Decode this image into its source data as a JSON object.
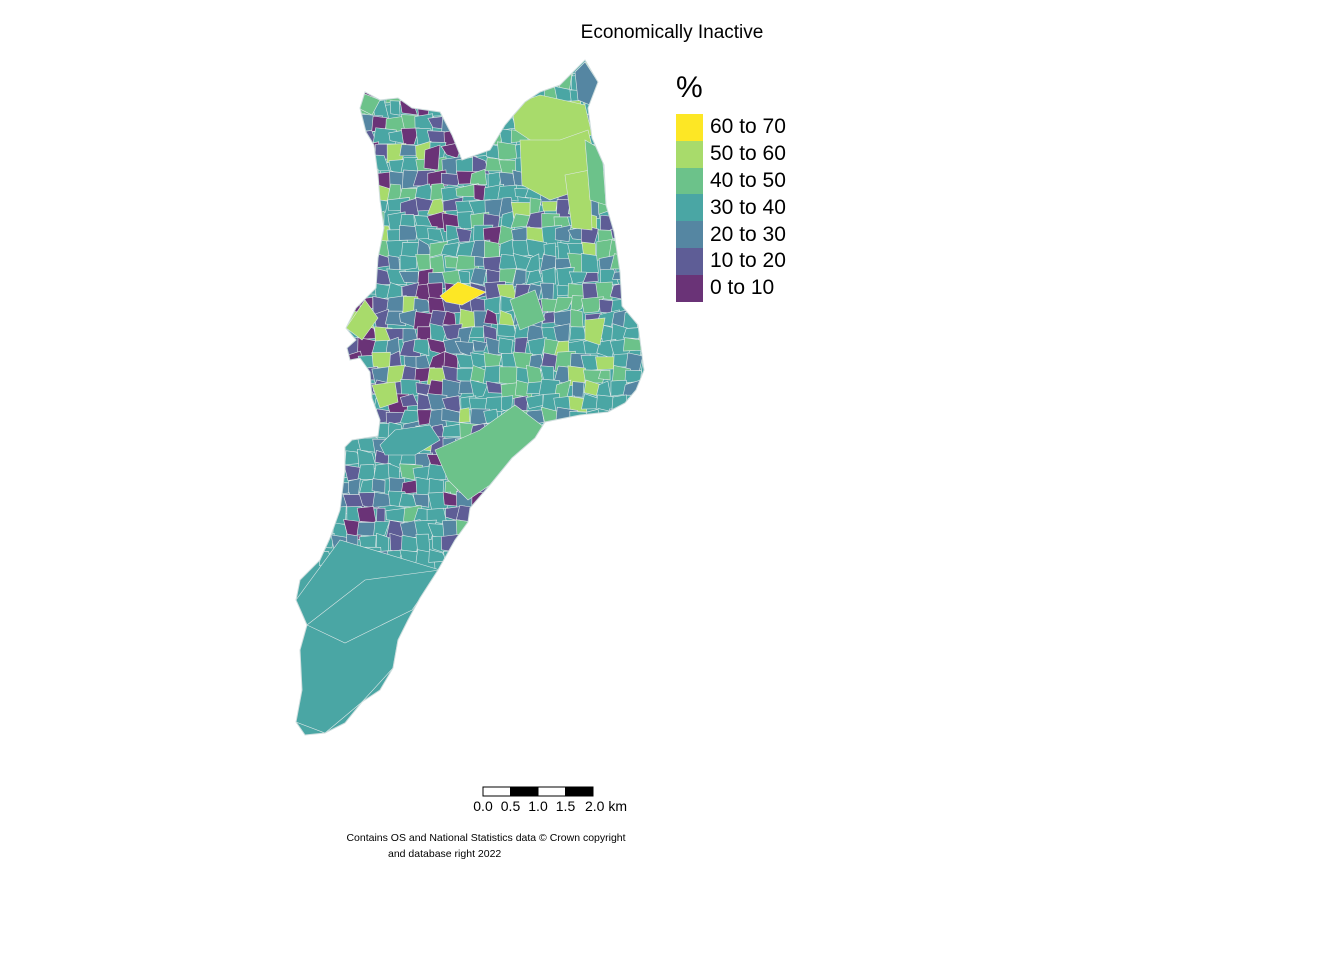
{
  "title": "Economically Inactive",
  "legend": {
    "title": "%",
    "items": [
      {
        "label": "60 to 70",
        "color": "#fde725"
      },
      {
        "label": "50 to 60",
        "color": "#a8db6b"
      },
      {
        "label": "40 to 50",
        "color": "#6cc28a"
      },
      {
        "label": "30 to 40",
        "color": "#4aa6a4"
      },
      {
        "label": "20 to 30",
        "color": "#5586a2"
      },
      {
        "label": "10 to 20",
        "color": "#5e5d96"
      },
      {
        "label": "0 to 10",
        "color": "#6a3377"
      }
    ]
  },
  "scalebar": {
    "ticks": [
      "0.0",
      "0.5",
      "1.0",
      "1.5",
      "2.0 km"
    ]
  },
  "credit": {
    "line1": "Contains OS and National Statistics data © Crown copyright",
    "line2": "and database right 2022"
  },
  "map": {
    "base_color": "#4aa6a4",
    "border_color": "#dfe8e8"
  }
}
